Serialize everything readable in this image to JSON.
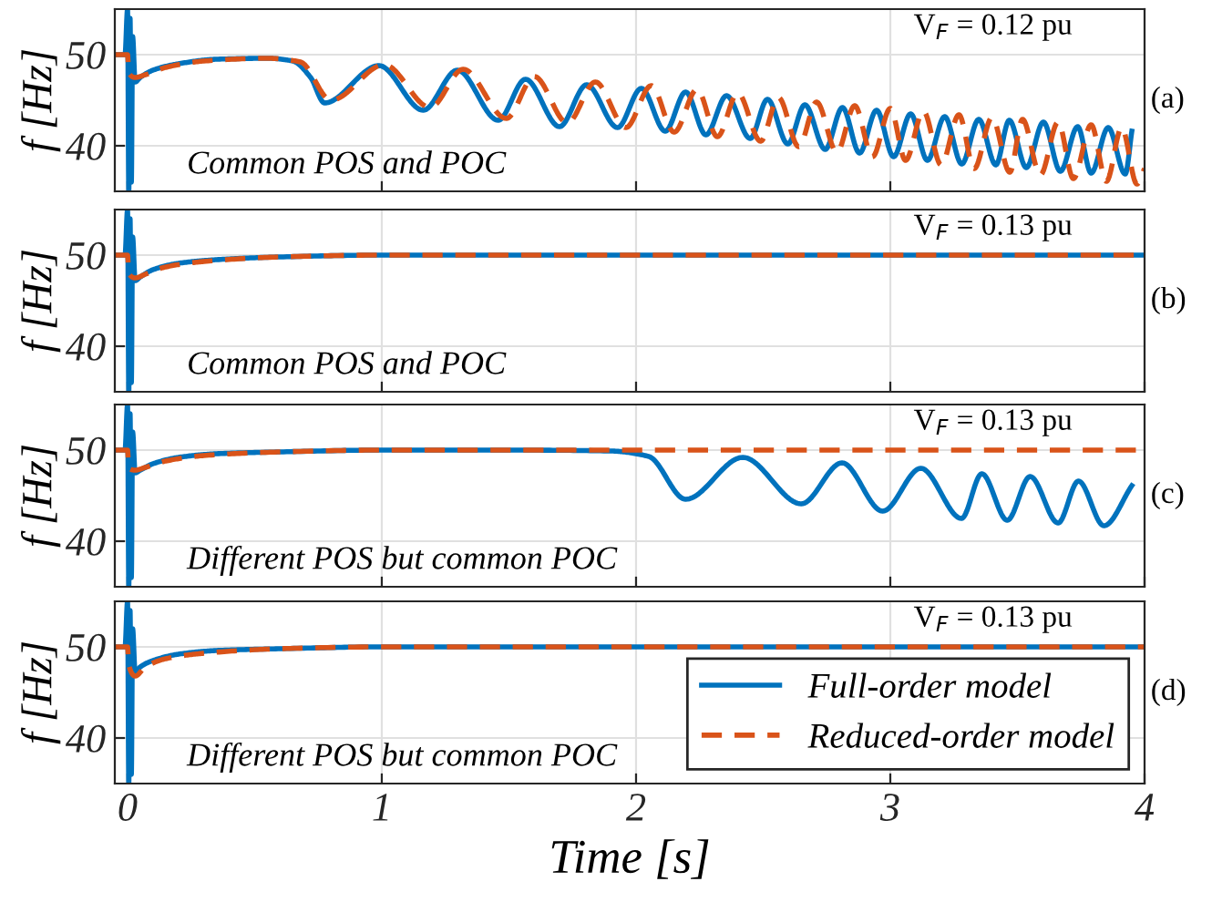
{
  "chart_data": [
    {
      "type": "line",
      "ylabel": "f [Hz]",
      "xlim": [
        -0.05,
        4
      ],
      "ylim": [
        35,
        55
      ],
      "xticks": [
        0,
        1,
        2,
        3,
        4
      ],
      "yticks": [
        40,
        50
      ],
      "tick_labels": "y",
      "grid": true,
      "annotations": [
        "V$_{F}$ = 0.12 pu",
        "Common POS and POC",
        "(a)"
      ],
      "series": [
        {
          "color": "#0072bd",
          "line_style": "solid",
          "x": [
            -0.05,
            -0.01,
            0,
            0.005,
            0.01,
            0.015,
            0.02,
            0.03,
            0.05,
            0.1,
            0.2,
            0.35,
            0.55,
            0.65,
            0.72,
            0.775,
            0.989,
            1.163,
            1.297,
            1.458,
            1.565,
            1.699,
            1.806,
            1.927,
            2.021,
            2.115,
            2.195,
            2.275,
            2.356,
            2.449,
            2.517,
            2.597,
            2.664,
            2.744,
            2.812,
            2.879,
            2.946,
            3.013,
            3.08,
            3.146,
            3.214,
            3.281,
            3.348,
            3.415,
            3.468,
            3.535,
            3.602,
            3.669,
            3.737,
            3.79,
            3.857,
            3.924,
            3.95
          ],
          "values": [
            50,
            50,
            55,
            35,
            54,
            36,
            52,
            47,
            47.5,
            48.3,
            49.0,
            49.5,
            49.6,
            49.3,
            47.5,
            44.7,
            48.8,
            43.9,
            48.3,
            42.8,
            47.3,
            42.1,
            46.7,
            42.0,
            46.3,
            41.6,
            45.9,
            41.2,
            45.5,
            40.8,
            45.1,
            40.2,
            44.5,
            39.6,
            44.2,
            39.2,
            43.9,
            38.8,
            43.5,
            38.4,
            43.2,
            38.0,
            42.9,
            37.9,
            42.8,
            37.6,
            42.6,
            37.2,
            42.1,
            37.0,
            42.0,
            36.9,
            41.6
          ]
        },
        {
          "color": "#d95319",
          "line_style": "dashed",
          "x": [
            -0.05,
            0,
            0.005,
            0.03,
            0.07,
            0.15,
            0.3,
            0.55,
            0.68,
            0.8,
            1.01,
            1.19,
            1.32,
            1.49,
            1.6,
            1.73,
            1.84,
            1.96,
            2.06,
            2.15,
            2.24,
            2.32,
            2.4,
            2.49,
            2.56,
            2.64,
            2.71,
            2.79,
            2.86,
            2.93,
            3.0,
            3.06,
            3.13,
            3.2,
            3.27,
            3.33,
            3.4,
            3.47,
            3.52,
            3.59,
            3.66,
            3.72,
            3.79,
            3.85,
            3.91,
            3.97,
            4.0
          ],
          "values": [
            50,
            50,
            48,
            47.5,
            47.8,
            48.6,
            49.3,
            49.6,
            49.2,
            45.0,
            48.9,
            44.2,
            48.4,
            43.0,
            47.6,
            42.5,
            47.0,
            42.0,
            46.6,
            41.5,
            46.2,
            41.0,
            45.8,
            40.5,
            45.3,
            39.9,
            44.8,
            39.3,
            44.4,
            38.8,
            44.1,
            38.4,
            43.8,
            37.9,
            43.4,
            37.5,
            43.1,
            37.1,
            42.9,
            36.8,
            42.6,
            36.4,
            42.3,
            36.1,
            42.0,
            35.8,
            37.5
          ]
        }
      ]
    },
    {
      "type": "line",
      "ylabel": "f [Hz]",
      "xlim": [
        -0.05,
        4
      ],
      "ylim": [
        35,
        55
      ],
      "xticks": [
        0,
        1,
        2,
        3,
        4
      ],
      "yticks": [
        40,
        50
      ],
      "tick_labels": "y",
      "grid": true,
      "annotations": [
        "V$_{F}$ = 0.13 pu",
        "Common POS and POC",
        "(b)"
      ],
      "series": [
        {
          "color": "#0072bd",
          "line_style": "solid",
          "x": [
            -0.05,
            -0.01,
            0,
            0.005,
            0.01,
            0.015,
            0.02,
            0.03,
            0.05,
            0.1,
            0.2,
            0.35,
            0.6,
            1.0,
            2.0,
            4.0
          ],
          "values": [
            50,
            50,
            55,
            35,
            54,
            36,
            52,
            47.2,
            47.6,
            48.4,
            49.1,
            49.5,
            49.8,
            50,
            50,
            50
          ]
        },
        {
          "color": "#d95319",
          "line_style": "dashed",
          "x": [
            -0.05,
            0,
            0.005,
            0.03,
            0.07,
            0.15,
            0.3,
            0.6,
            1.0,
            2.0,
            4.0
          ],
          "values": [
            50,
            50,
            48,
            47.5,
            47.9,
            48.7,
            49.3,
            49.8,
            50,
            50,
            50
          ]
        }
      ]
    },
    {
      "type": "line",
      "ylabel": "f [Hz]",
      "xlim": [
        -0.05,
        4
      ],
      "ylim": [
        35,
        55
      ],
      "xticks": [
        0,
        1,
        2,
        3,
        4
      ],
      "yticks": [
        40,
        50
      ],
      "tick_labels": "y",
      "grid": true,
      "annotations": [
        "V$_{F}$ = 0.13 pu",
        "Different POS but common POC",
        "(c)"
      ],
      "series": [
        {
          "color": "#0072bd",
          "line_style": "solid",
          "x": [
            -0.05,
            -0.01,
            0,
            0.005,
            0.01,
            0.015,
            0.02,
            0.03,
            0.05,
            0.1,
            0.2,
            0.35,
            0.6,
            1.0,
            1.5,
            1.9,
            2.05,
            2.195,
            2.42,
            2.65,
            2.81,
            2.97,
            3.12,
            3.28,
            3.36,
            3.46,
            3.55,
            3.66,
            3.74,
            3.84,
            3.95
          ],
          "values": [
            50,
            50,
            55,
            35,
            54,
            36,
            52,
            47.5,
            47.8,
            48.5,
            49.2,
            49.6,
            49.8,
            50,
            50,
            49.9,
            49.3,
            44.6,
            49.2,
            44.1,
            48.6,
            43.3,
            48.0,
            42.5,
            47.4,
            42.3,
            47.1,
            42.0,
            46.6,
            41.7,
            46.1
          ]
        },
        {
          "color": "#d95319",
          "line_style": "dashed",
          "x": [
            -0.05,
            0,
            0.005,
            0.03,
            0.07,
            0.15,
            0.3,
            0.6,
            1.0,
            2.0,
            4.0
          ],
          "values": [
            50,
            50,
            48,
            47.8,
            48.1,
            48.8,
            49.4,
            49.8,
            50,
            50,
            50
          ]
        }
      ]
    },
    {
      "type": "line",
      "ylabel": "f [Hz]",
      "xlabel": "Time [s]",
      "xlim": [
        -0.05,
        4
      ],
      "ylim": [
        35,
        55
      ],
      "xticks": [
        0,
        1,
        2,
        3,
        4
      ],
      "yticks": [
        40,
        50
      ],
      "grid": true,
      "legend": "bottom right",
      "annotations": [
        "V$_{F}$ = 0.13 pu",
        "Different POS but common POC",
        "(d)"
      ],
      "series": [
        {
          "name": "Full-order model",
          "color": "#0072bd",
          "line_style": "solid",
          "x": [
            -0.05,
            -0.01,
            0,
            0.005,
            0.01,
            0.015,
            0.02,
            0.03,
            0.05,
            0.1,
            0.2,
            0.35,
            0.6,
            1.0,
            2.0,
            4.0
          ],
          "values": [
            50,
            50,
            55,
            35,
            54,
            36,
            52,
            47.2,
            47.8,
            48.5,
            49.2,
            49.6,
            49.8,
            50,
            50,
            50
          ]
        },
        {
          "name": "Reduced-order model",
          "color": "#d95319",
          "line_style": "dashed",
          "x": [
            -0.05,
            0,
            0.005,
            0.03,
            0.07,
            0.15,
            0.3,
            0.6,
            1.0,
            2.0,
            4.0
          ],
          "values": [
            50,
            50,
            48,
            46.8,
            47.8,
            48.7,
            49.3,
            49.8,
            50,
            50,
            50
          ]
        }
      ]
    }
  ]
}
